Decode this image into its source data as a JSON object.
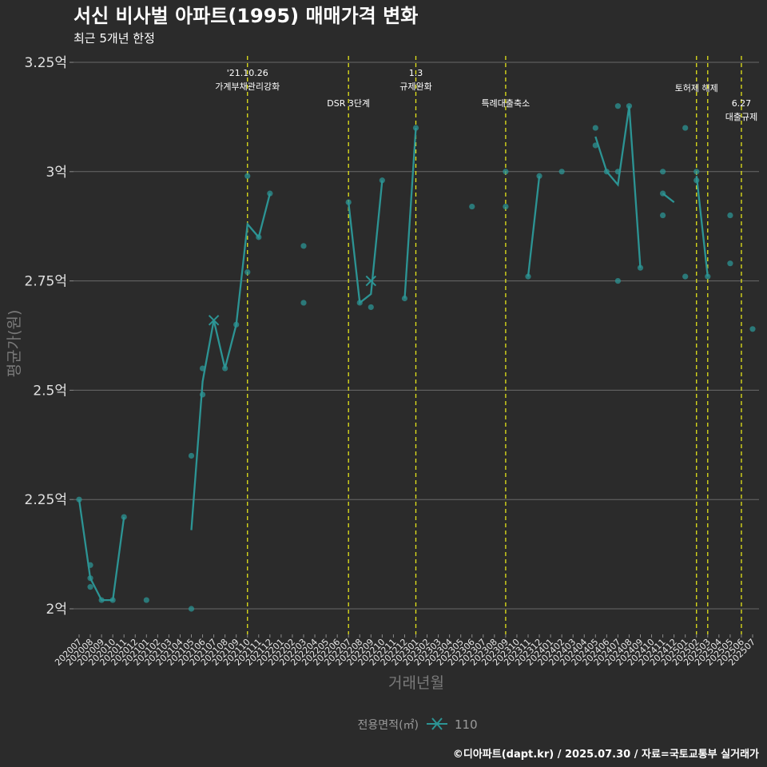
{
  "chart_data": {
    "type": "line",
    "title": "서신 비사벌 아파트(1995) 매매가격 변화",
    "subtitle": "최근 5개년 한정",
    "xlabel": "거래년월",
    "ylabel": "평균가(원)",
    "ylim": [
      1.95,
      3.25
    ],
    "yticks": [
      {
        "value": 2.0,
        "label": "2억"
      },
      {
        "value": 2.25,
        "label": "2.25억"
      },
      {
        "value": 2.5,
        "label": "2.5억"
      },
      {
        "value": 2.75,
        "label": "2.75억"
      },
      {
        "value": 3.0,
        "label": "3억"
      },
      {
        "value": 3.25,
        "label": "3.25억"
      }
    ],
    "categories": [
      "202007",
      "202008",
      "202009",
      "202010",
      "202011",
      "202012",
      "202101",
      "202102",
      "202103",
      "202104",
      "202105",
      "202106",
      "202107",
      "202108",
      "202109",
      "202110",
      "202111",
      "202112",
      "202201",
      "202202",
      "202203",
      "202204",
      "202205",
      "202206",
      "202207",
      "202208",
      "202209",
      "202210",
      "202211",
      "202212",
      "202301",
      "202302",
      "202303",
      "202304",
      "202305",
      "202306",
      "202307",
      "202308",
      "202309",
      "202310",
      "202311",
      "202312",
      "202401",
      "202402",
      "202403",
      "202404",
      "202405",
      "202406",
      "202407",
      "202408",
      "202409",
      "202410",
      "202411",
      "202412",
      "202501",
      "202502",
      "202503",
      "202504",
      "202505",
      "202506",
      "202507"
    ],
    "legend_title": "전용면적(㎡)",
    "series": [
      {
        "name": "110",
        "line_segments": [
          [
            [
              0,
              2.25
            ],
            [
              1,
              2.07
            ],
            [
              2,
              2.02
            ],
            [
              3,
              2.02
            ],
            [
              4,
              2.21
            ]
          ],
          [
            [
              10,
              2.18
            ],
            [
              11,
              2.52
            ],
            [
              12,
              2.66
            ],
            [
              13,
              2.55
            ],
            [
              14,
              2.65
            ],
            [
              15,
              2.88
            ],
            [
              16,
              2.85
            ],
            [
              17,
              2.95
            ]
          ],
          [
            [
              24,
              2.93
            ],
            [
              25,
              2.7
            ],
            [
              26,
              2.72
            ],
            [
              27,
              2.98
            ]
          ],
          [
            [
              29,
              2.71
            ],
            [
              30,
              3.1
            ]
          ],
          [
            [
              40,
              2.76
            ],
            [
              41,
              2.99
            ]
          ],
          [
            [
              46,
              3.08
            ],
            [
              47,
              3.0
            ],
            [
              48,
              2.97
            ],
            [
              49,
              3.15
            ],
            [
              50,
              2.78
            ]
          ],
          [
            [
              52,
              2.95
            ],
            [
              53,
              2.93
            ]
          ],
          [
            [
              55,
              2.99
            ],
            [
              56,
              2.76
            ]
          ]
        ],
        "points": [
          [
            0,
            2.25
          ],
          [
            1,
            2.1
          ],
          [
            1,
            2.07
          ],
          [
            1,
            2.05
          ],
          [
            2,
            2.02
          ],
          [
            3,
            2.02
          ],
          [
            4,
            2.21
          ],
          [
            6,
            2.02
          ],
          [
            10,
            2.35
          ],
          [
            10,
            2.0
          ],
          [
            11,
            2.55
          ],
          [
            11,
            2.49
          ],
          [
            13,
            2.55
          ],
          [
            14,
            2.65
          ],
          [
            15,
            2.99
          ],
          [
            15,
            2.77
          ],
          [
            16,
            2.85
          ],
          [
            17,
            2.95
          ],
          [
            20,
            2.83
          ],
          [
            20,
            2.7
          ],
          [
            24,
            2.93
          ],
          [
            25,
            2.7
          ],
          [
            26,
            2.69
          ],
          [
            27,
            2.98
          ],
          [
            29,
            2.71
          ],
          [
            30,
            3.1
          ],
          [
            35,
            2.92
          ],
          [
            38,
            3.0
          ],
          [
            38,
            2.92
          ],
          [
            40,
            2.76
          ],
          [
            41,
            2.99
          ],
          [
            43,
            3.0
          ],
          [
            46,
            3.1
          ],
          [
            46,
            3.06
          ],
          [
            47,
            3.0
          ],
          [
            48,
            3.15
          ],
          [
            48,
            3.0
          ],
          [
            48,
            2.75
          ],
          [
            49,
            3.15
          ],
          [
            50,
            2.78
          ],
          [
            52,
            3.0
          ],
          [
            52,
            2.95
          ],
          [
            52,
            2.9
          ],
          [
            54,
            3.1
          ],
          [
            54,
            2.76
          ],
          [
            55,
            3.0
          ],
          [
            55,
            2.98
          ],
          [
            56,
            2.76
          ],
          [
            58,
            2.9
          ],
          [
            58,
            2.79
          ],
          [
            60,
            2.64
          ]
        ],
        "x_markers": [
          [
            12,
            2.66
          ],
          [
            26,
            2.75
          ]
        ]
      }
    ],
    "events": [
      {
        "x": 15,
        "label": "'21.10.26\n가계부채관리강화",
        "level": 0
      },
      {
        "x": 24,
        "label": "DSR 3단계",
        "level": 1
      },
      {
        "x": 30,
        "label": "1.3\n규제완화",
        "level": 0
      },
      {
        "x": 38,
        "label": "특례대출축소",
        "level": 1
      },
      {
        "x": 55,
        "label": "토허제 해제",
        "level": 0.5
      },
      {
        "x": 56,
        "label": "",
        "level": 0
      },
      {
        "x": 59,
        "label": "6.27\n대출규제",
        "level": 1
      }
    ],
    "footer": "©디아파트(dapt.kr) / 2025.07.30 / 자료=국토교통부 실거래가"
  }
}
